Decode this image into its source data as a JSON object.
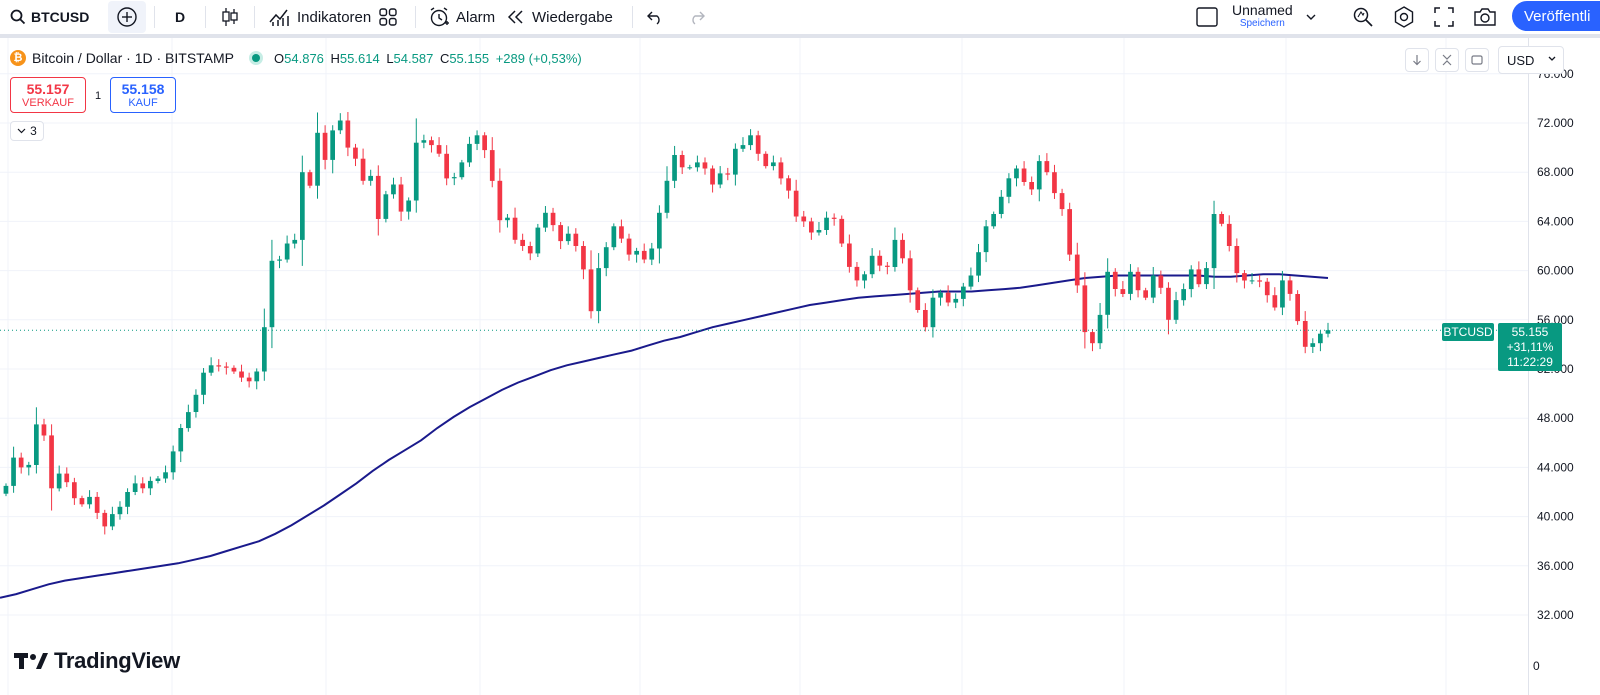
{
  "toolbar": {
    "symbol": "BTCUSD",
    "interval": "D",
    "indicators_label": "Indikatoren",
    "alarm_label": "Alarm",
    "replay_label": "Wiedergabe",
    "layout_name": "Unnamed",
    "layout_status": "Speichern",
    "publish_label": "Veröffentli",
    "icons": [
      "search-icon",
      "add-symbol-icon",
      "candles-icon",
      "indicators-icon",
      "templates-icon",
      "alarm-icon",
      "replay-icon",
      "undo-icon",
      "redo-icon",
      "layout-icon",
      "chevron-down-icon",
      "quick-search-icon",
      "settings-icon",
      "fullscreen-icon",
      "camera-icon"
    ]
  },
  "legend": {
    "title": "Bitcoin / Dollar · 1D · BITSTAMP",
    "open_label": "O",
    "open": "54.876",
    "high_label": "H",
    "high": "55.614",
    "low_label": "L",
    "low": "54.587",
    "close_label": "C",
    "close": "55.155",
    "change": "+289 (+0,53%)"
  },
  "trade": {
    "sell_value": "55.157",
    "sell_label": "VERKAUF",
    "buy_value": "55.158",
    "buy_label": "KAUF",
    "spread": "1"
  },
  "indicators_collapsed": {
    "count": "3"
  },
  "price_axis": {
    "currency": "USD",
    "bottom_label": "0",
    "last_symbol": "BTCUSD",
    "last_price": "55.155",
    "last_change": "+31,11%",
    "countdown": "11:22:29"
  },
  "brand": {
    "name": "TradingView"
  },
  "colors": {
    "up": "#089981",
    "down": "#f23645",
    "ma": "#1a1a8c",
    "accent": "#2962ff",
    "grid": "#f0f3fa"
  },
  "chart_data": {
    "type": "candlestick",
    "timeframe": "1D",
    "currency": "USD",
    "y_ticks": [
      32000,
      36000,
      40000,
      44000,
      48000,
      52000,
      56000,
      60000,
      64000,
      68000,
      72000,
      76000
    ],
    "y_tick_labels": [
      "32.000",
      "36.000",
      "40.000",
      "44.000",
      "48.000",
      "52.000",
      "56.000",
      "60.000",
      "64.000",
      "68.000",
      "72.000",
      "76.000"
    ],
    "ylim": [
      29000,
      77000
    ],
    "last_price": 55155,
    "series": [
      {
        "name": "BTCUSD",
        "close": [
          42500,
          44800,
          44000,
          44200,
          47500,
          46600,
          42300,
          43500,
          42800,
          41500,
          41000,
          41600,
          40300,
          39200,
          40200,
          40800,
          42000,
          42700,
          42300,
          42900,
          43100,
          43600,
          45300,
          47200,
          48500,
          49900,
          51700,
          52300,
          52200,
          52100,
          51800,
          51300,
          51000,
          51800,
          55400,
          60800,
          60900,
          62200,
          62500,
          68000,
          66900,
          71200,
          69000,
          71400,
          72200,
          70000,
          69100,
          67300,
          67700,
          64200,
          66200,
          67000,
          64800,
          65700,
          70400,
          70600,
          70200,
          69500,
          67500,
          67600,
          68800,
          70300,
          71000,
          69800,
          67300,
          64100,
          64300,
          62500,
          62000,
          61400,
          63500,
          64700,
          63700,
          62400,
          63000,
          62000,
          60100,
          56700,
          60200,
          61900,
          63600,
          62600,
          61300,
          61600,
          60900,
          61800,
          64700,
          67300,
          69400,
          68400,
          68400,
          68800,
          68300,
          67000,
          67900,
          67800,
          69900,
          70200,
          71000,
          69500,
          68500,
          68800,
          67500,
          66500,
          64400,
          64000,
          63100,
          63300,
          64300,
          64200,
          62200,
          60300,
          59200,
          59700,
          61200,
          60400,
          60300,
          62500,
          61000,
          58400,
          56800,
          55400,
          57800,
          58200,
          57400,
          57700,
          58700,
          59600,
          61500,
          63600,
          64600,
          66000,
          67500,
          68300,
          67200,
          66600,
          68900,
          68000,
          66300,
          65000,
          61300,
          58800,
          55000,
          54100,
          56400,
          59900,
          58500,
          58100,
          59900,
          58400,
          57800,
          59600,
          58600,
          56000,
          57600,
          58500,
          60100,
          58900,
          60200,
          64600,
          63800,
          62000,
          59800,
          59200,
          59200,
          59100,
          58000,
          57000,
          59200,
          58100,
          55900,
          53800,
          54100,
          54870,
          55155
        ]
      }
    ],
    "moving_average": {
      "name": "",
      "values": [
        33400,
        33700,
        34100,
        34500,
        34800,
        35000,
        35200,
        35400,
        35600,
        35800,
        36000,
        36200,
        36500,
        36800,
        37200,
        37600,
        38000,
        38600,
        39300,
        40100,
        40900,
        41800,
        42700,
        43700,
        44600,
        45400,
        46200,
        47200,
        48100,
        48900,
        49600,
        50300,
        50900,
        51400,
        51900,
        52300,
        52600,
        52900,
        53200,
        53500,
        53900,
        54300,
        54600,
        55000,
        55400,
        55700,
        56000,
        56300,
        56600,
        56900,
        57200,
        57400,
        57600,
        57800,
        57900,
        58000,
        58100,
        58200,
        58300,
        58300,
        58300,
        58400,
        58500,
        58600,
        58800,
        59000,
        59200,
        59400,
        59500,
        59600,
        59600,
        59600,
        59600,
        59600,
        59600,
        59500,
        59500,
        59600,
        59700,
        59700,
        59600,
        59500,
        59400
      ]
    }
  }
}
